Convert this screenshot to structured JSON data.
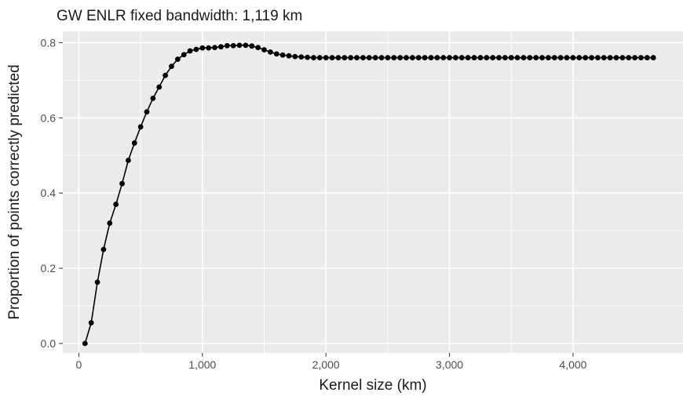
{
  "chart_data": {
    "type": "line",
    "title": "GW ENLR fixed bandwidth: 1,119 km",
    "xlabel": "Kernel size (km)",
    "ylabel": "Proportion of points correctly predicted",
    "xlim": [
      -130,
      4890
    ],
    "ylim": [
      -0.025,
      0.83
    ],
    "x_ticks": [
      0,
      1000,
      2000,
      3000,
      4000
    ],
    "x_tick_labels": [
      "0",
      "1,000",
      "2,000",
      "3,000",
      "4,000"
    ],
    "y_ticks": [
      0.0,
      0.2,
      0.4,
      0.6,
      0.8
    ],
    "y_tick_labels": [
      "0.0",
      "0.2",
      "0.4",
      "0.6",
      "0.8"
    ],
    "grid": true,
    "legend": "none",
    "colors": {
      "panel": "#ebebeb",
      "grid": "#ffffff",
      "series": "#000000"
    },
    "series": [
      {
        "x": [
          50,
          100,
          150,
          200,
          250,
          300,
          350,
          400,
          450,
          500,
          550,
          600,
          650,
          700,
          750,
          800,
          850,
          900,
          950,
          1000,
          1050,
          1100,
          1150,
          1200,
          1250,
          1300,
          1350,
          1400,
          1450,
          1500,
          1550,
          1600,
          1650,
          1700,
          1750,
          1800,
          1850,
          1900,
          1950,
          2000,
          2050,
          2100,
          2150,
          2200,
          2250,
          2300,
          2350,
          2400,
          2450,
          2500,
          2550,
          2600,
          2650,
          2700,
          2750,
          2800,
          2850,
          2900,
          2950,
          3000,
          3050,
          3100,
          3150,
          3200,
          3250,
          3300,
          3350,
          3400,
          3450,
          3500,
          3550,
          3600,
          3650,
          3700,
          3750,
          3800,
          3850,
          3900,
          3950,
          4000,
          4050,
          4100,
          4150,
          4200,
          4250,
          4300,
          4350,
          4400,
          4450,
          4500,
          4550,
          4600,
          4650
        ],
        "values": [
          0.0,
          0.055,
          0.163,
          0.25,
          0.32,
          0.37,
          0.425,
          0.487,
          0.533,
          0.576,
          0.616,
          0.652,
          0.682,
          0.713,
          0.737,
          0.756,
          0.768,
          0.778,
          0.782,
          0.786,
          0.786,
          0.787,
          0.789,
          0.792,
          0.792,
          0.793,
          0.793,
          0.791,
          0.787,
          0.781,
          0.775,
          0.77,
          0.767,
          0.765,
          0.763,
          0.762,
          0.761,
          0.76,
          0.76,
          0.76,
          0.76,
          0.76,
          0.76,
          0.76,
          0.76,
          0.76,
          0.76,
          0.76,
          0.76,
          0.76,
          0.76,
          0.76,
          0.76,
          0.76,
          0.76,
          0.76,
          0.76,
          0.76,
          0.76,
          0.76,
          0.76,
          0.76,
          0.76,
          0.76,
          0.76,
          0.76,
          0.76,
          0.76,
          0.76,
          0.76,
          0.76,
          0.76,
          0.76,
          0.76,
          0.76,
          0.76,
          0.76,
          0.76,
          0.76,
          0.76,
          0.76,
          0.76,
          0.76,
          0.76,
          0.76,
          0.76,
          0.76,
          0.76,
          0.76,
          0.76,
          0.76,
          0.76,
          0.76
        ]
      }
    ]
  }
}
